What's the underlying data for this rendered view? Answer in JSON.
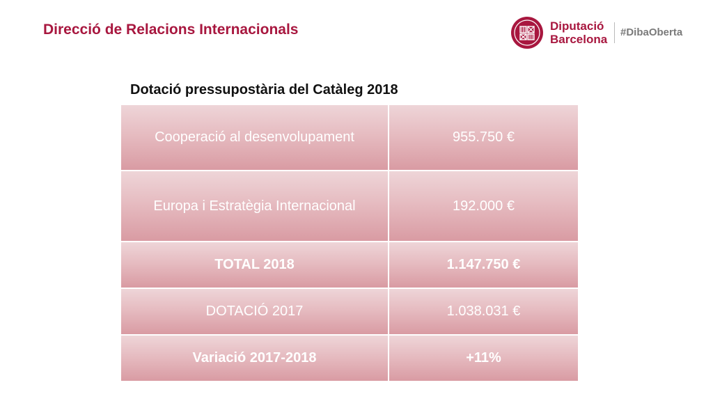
{
  "header": {
    "title": "Direcció de Relacions Internacionals"
  },
  "logo": {
    "line1": "Diputació",
    "line2": "Barcelona",
    "hashtag": "#DibaOberta",
    "icon": "diputacio-seal-icon",
    "brand_color": "#a8173f"
  },
  "table": {
    "title": "Dotació pressupostària del Catàleg 2018",
    "rows": [
      {
        "label": "Cooperació al desenvolupament",
        "value": "955.750 €"
      },
      {
        "label": "Europa i Estratègia Internacional",
        "value": "192.000 €"
      },
      {
        "label": "TOTAL 2018",
        "value": "1.147.750 €"
      },
      {
        "label": "DOTACIÓ 2017",
        "value": "1.038.031 €"
      },
      {
        "label": "Variació 2017-2018",
        "value": "+11%"
      }
    ]
  }
}
